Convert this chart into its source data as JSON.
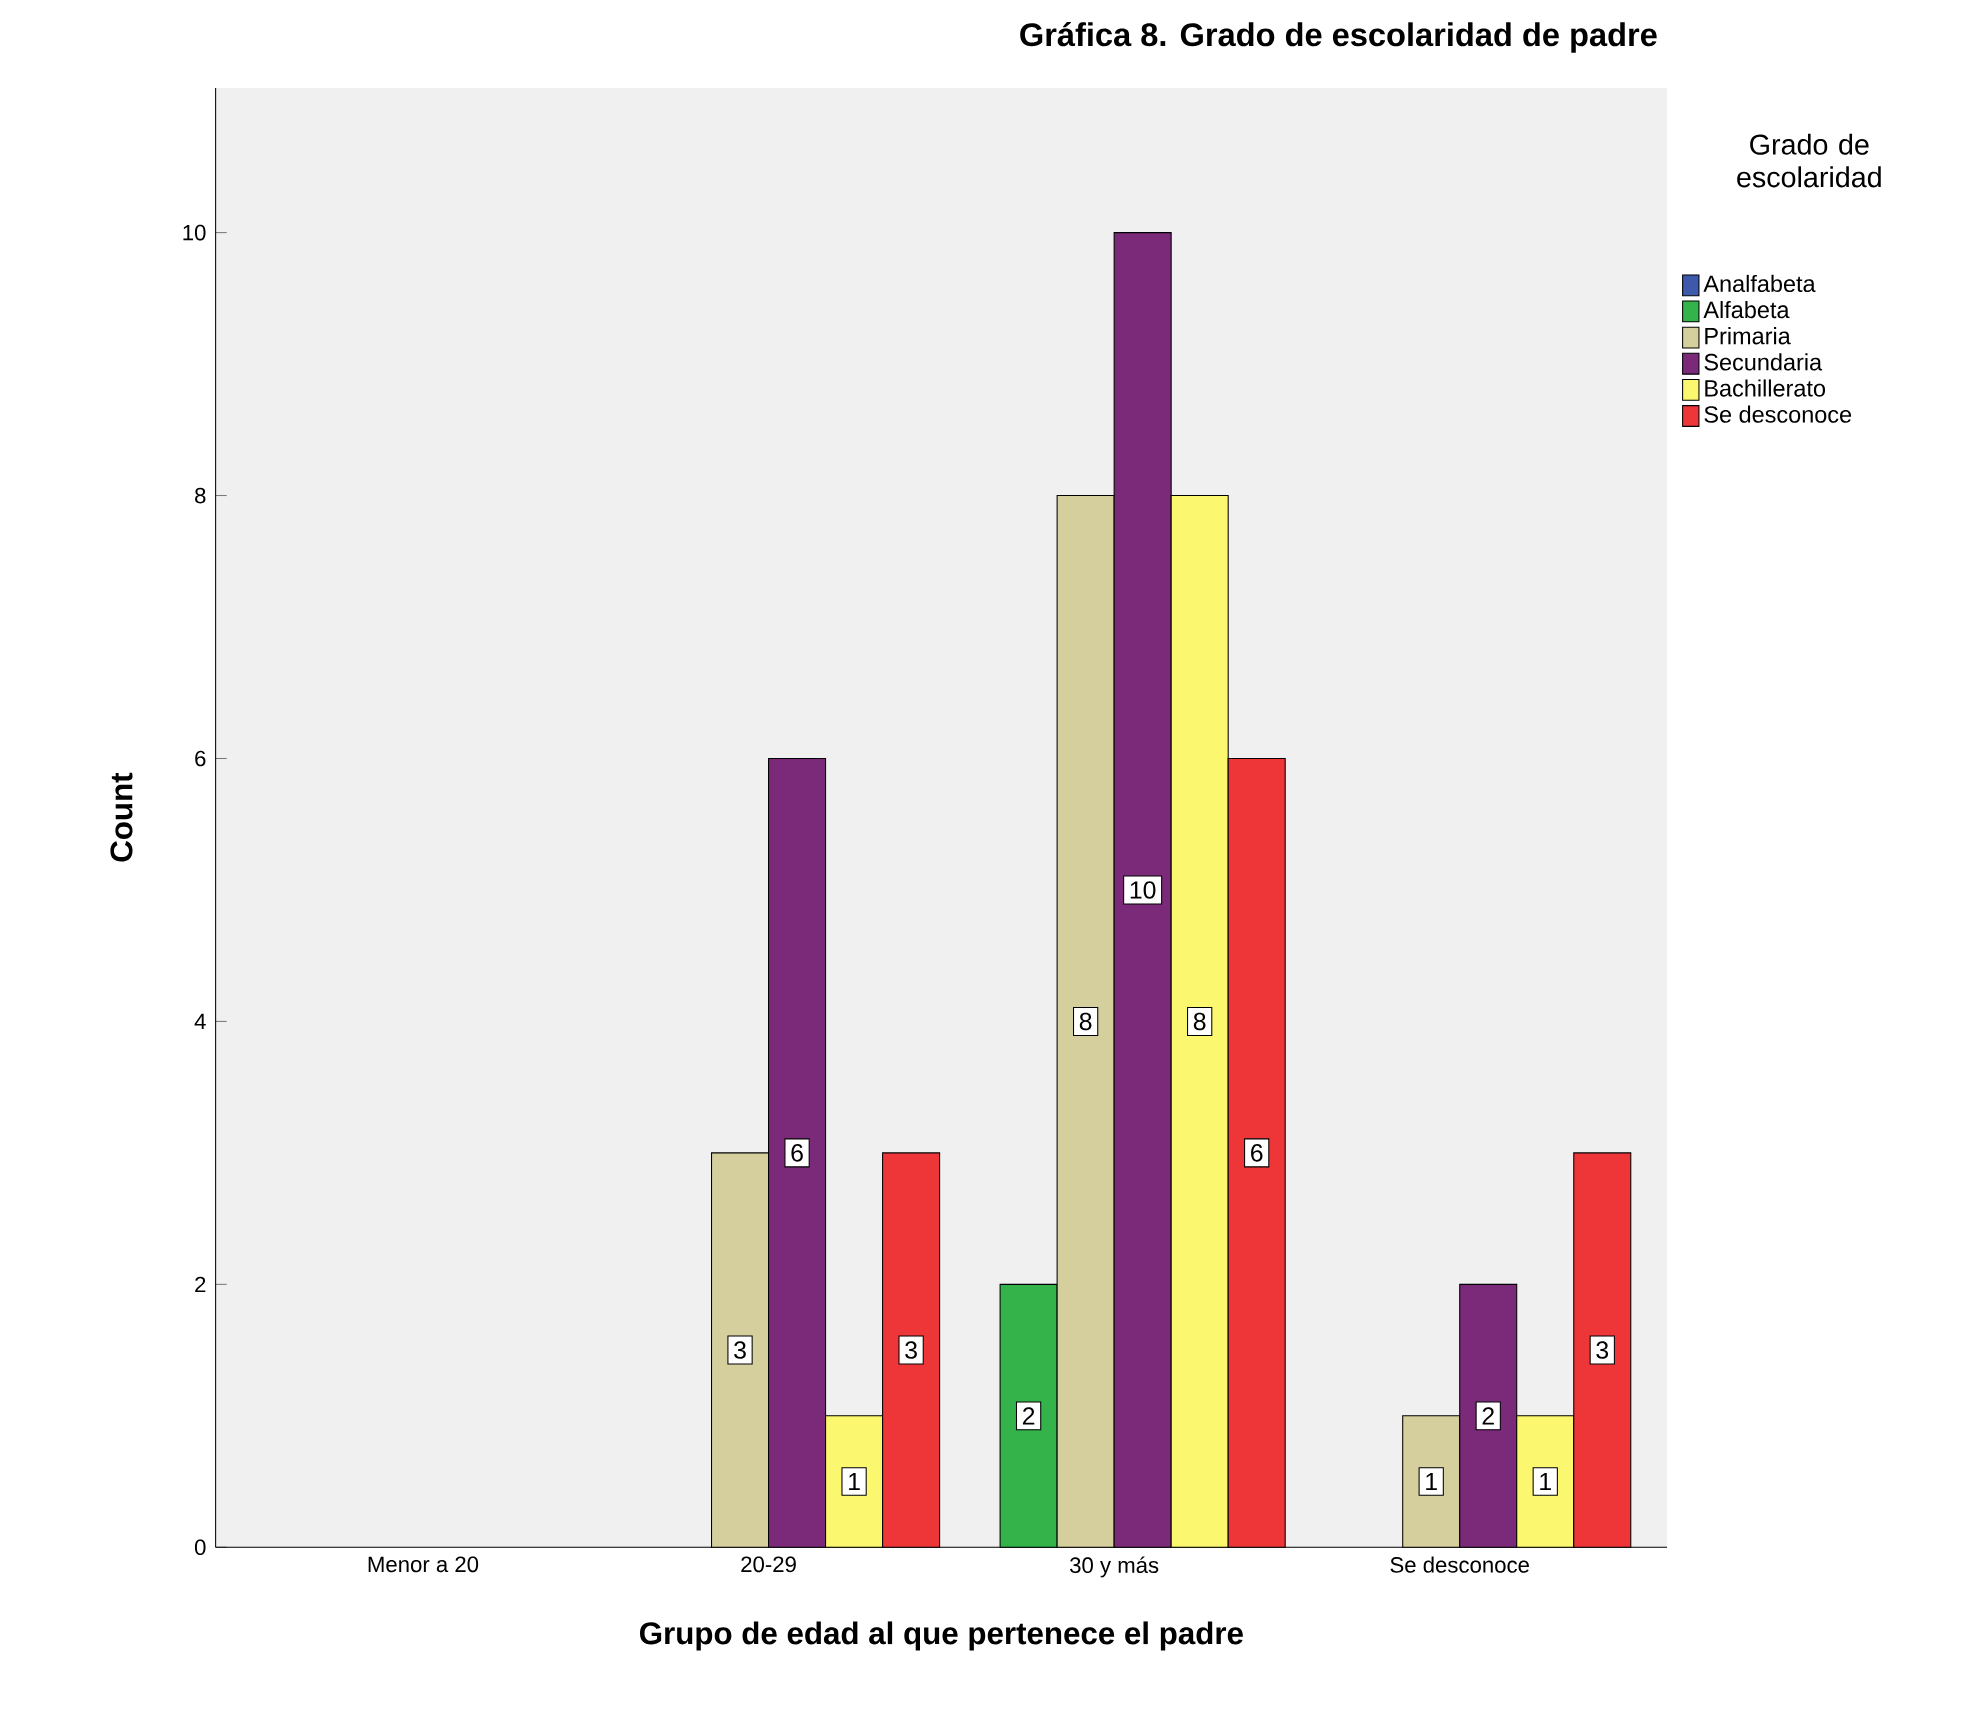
{
  "chart_data": {
    "type": "bar",
    "title": "Gráfica 8. Grado de escolaridad de padre",
    "xlabel": "Grupo de edad al que pertenece el padre",
    "ylabel": "Count",
    "legend_title": "Grado de escolaridad",
    "legend": "right",
    "data_labels": true,
    "categories": [
      "Menor a 20",
      "20-29",
      "30 y más",
      "Se desconoce"
    ],
    "series": [
      {
        "name": "Analfabeta",
        "color": "#3e58ac",
        "values": [
          null,
          null,
          null,
          null
        ]
      },
      {
        "name": "Alfabeta",
        "color": "#33b34a",
        "values": [
          null,
          null,
          2,
          null
        ]
      },
      {
        "name": "Primaria",
        "color": "#d4cf9c",
        "values": [
          null,
          3,
          8,
          1
        ]
      },
      {
        "name": "Secundaria",
        "color": "#7b2a7a",
        "values": [
          null,
          6,
          10,
          2
        ]
      },
      {
        "name": "Bachillerato",
        "color": "#fbf76e",
        "values": [
          null,
          1,
          8,
          1
        ]
      },
      {
        "name": "Se desconoce",
        "color": "#ee3638",
        "values": [
          null,
          3,
          6,
          3
        ]
      }
    ],
    "ylim": [
      0,
      11.1
    ],
    "yticks": [
      0,
      2,
      4,
      6,
      8,
      10
    ]
  }
}
